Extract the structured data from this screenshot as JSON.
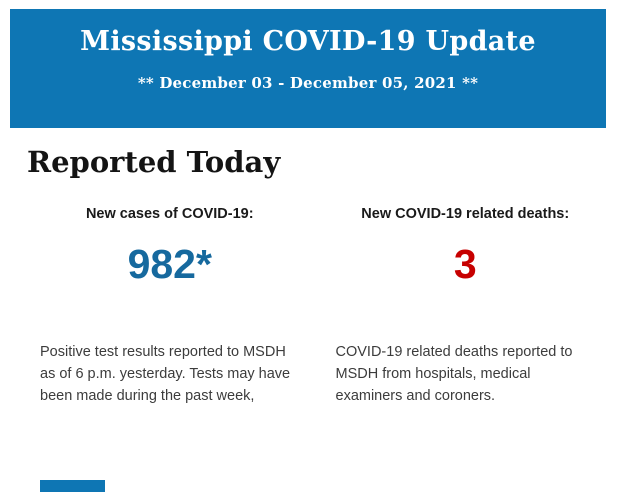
{
  "banner": {
    "title": "Mississippi COVID-19 Update",
    "date_range": "** December 03 - December 05, 2021 **"
  },
  "section": {
    "heading": "Reported Today",
    "stats": [
      {
        "label": "New cases of COVID-19:",
        "value": "982*",
        "description": "Positive test results reported to MSDH as of 6 p.m. yesterday. Tests may have been made during the past week,"
      },
      {
        "label": "New COVID-19 related deaths:",
        "value": "3",
        "description": "COVID-19 related deaths reported to MSDH from hospitals, medical examiners and coroners."
      }
    ]
  },
  "colors": {
    "banner_blue": "#0e76b4",
    "cases_value_blue": "#16699e",
    "deaths_value_red": "#c70000"
  }
}
